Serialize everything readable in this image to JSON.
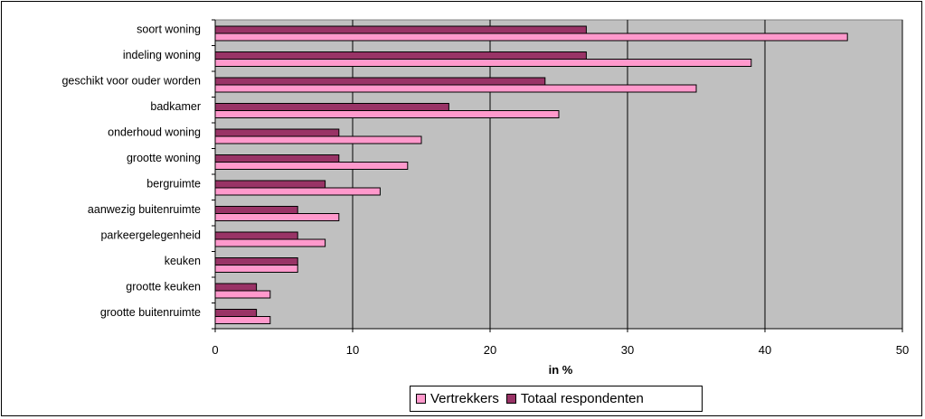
{
  "chart_data": {
    "type": "bar",
    "orientation": "horizontal",
    "categories": [
      "soort woning",
      "indeling woning",
      "geschikt voor ouder worden",
      "badkamer",
      "onderhoud woning",
      "grootte woning",
      "bergruimte",
      "aanwezig buitenruimte",
      "parkeergelegenheid",
      "keuken",
      "grootte keuken",
      "grootte buitenruimte"
    ],
    "series": [
      {
        "name": "Totaal respondenten",
        "color": "#993366",
        "values": [
          27,
          27,
          24,
          17,
          9,
          9,
          8,
          6,
          6,
          6,
          3,
          3
        ]
      },
      {
        "name": "Vertrekkers",
        "color": "#ff99cc",
        "values": [
          46,
          39,
          35,
          25,
          15,
          14,
          12,
          9,
          8,
          6,
          4,
          4
        ]
      }
    ],
    "xlabel": "in %",
    "xlim": [
      0,
      50
    ],
    "xticks": [
      0,
      10,
      20,
      30,
      40,
      50
    ],
    "grid": "vertical",
    "plot_background": "#c0c0c0",
    "legend_position": "bottom"
  },
  "legend": {
    "items": [
      {
        "label": "Vertrekkers",
        "color": "#ff99cc"
      },
      {
        "label": "Totaal respondenten",
        "color": "#993366"
      }
    ]
  }
}
